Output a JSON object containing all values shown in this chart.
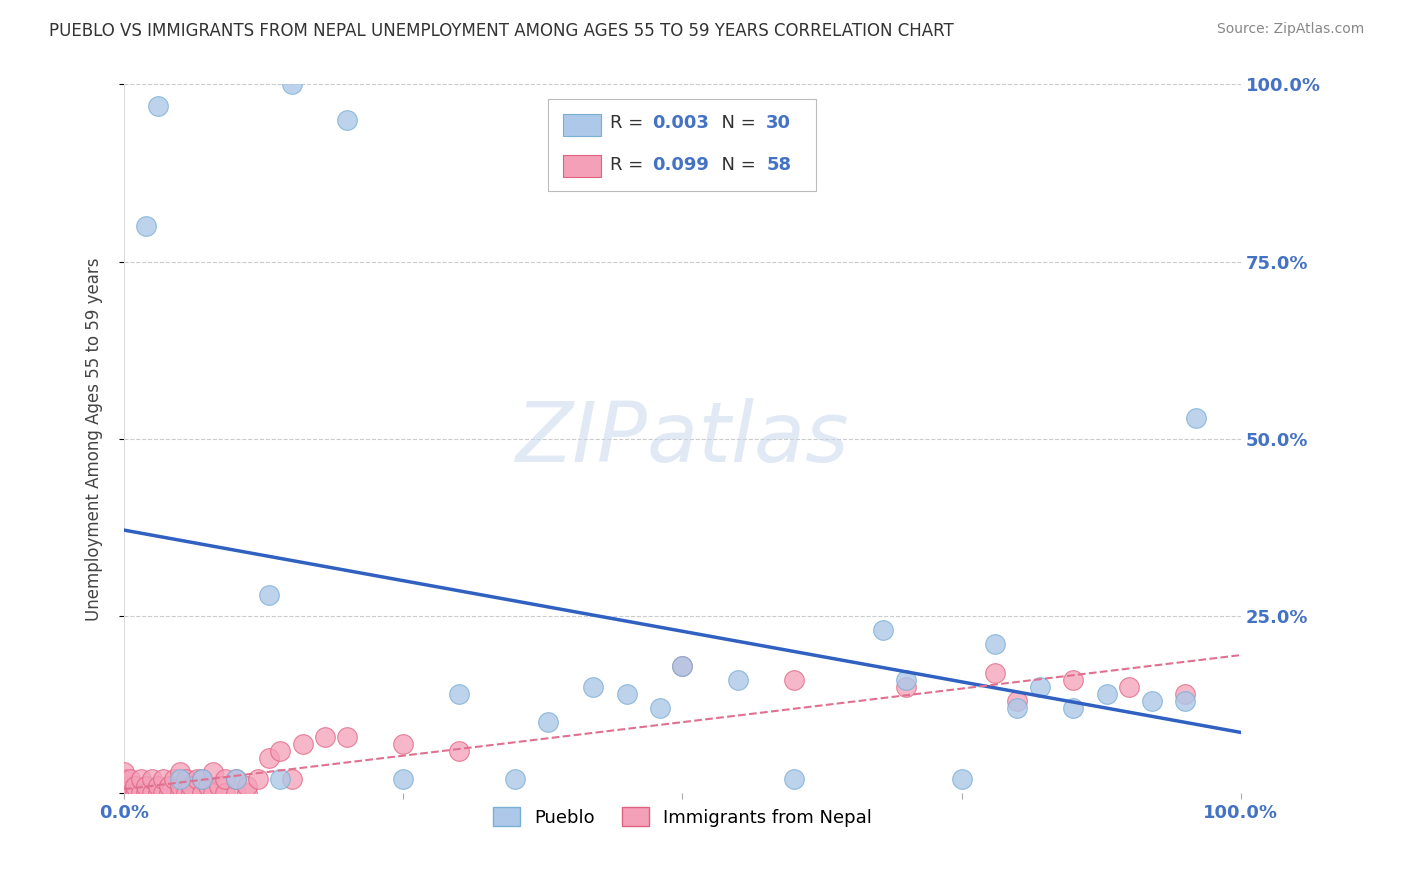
{
  "title": "PUEBLO VS IMMIGRANTS FROM NEPAL UNEMPLOYMENT AMONG AGES 55 TO 59 YEARS CORRELATION CHART",
  "source": "Source: ZipAtlas.com",
  "ylabel": "Unemployment Among Ages 55 to 59 years",
  "xlim": [
    0,
    1.0
  ],
  "ylim": [
    0,
    1.0
  ],
  "pueblo_color": "#adc8e8",
  "pueblo_edge": "#7aafd4",
  "nepal_color": "#f4a0b8",
  "nepal_edge": "#e06080",
  "pueblo_R": 0.003,
  "pueblo_N": 30,
  "nepal_R": 0.099,
  "nepal_N": 58,
  "pueblo_trend_color": "#3060c0",
  "nepal_trend_color": "#e07090",
  "watermark": "ZIPatlas",
  "pueblo_x": [
    0.02,
    0.13,
    0.15,
    0.03,
    0.2,
    0.3,
    0.35,
    0.42,
    0.45,
    0.5,
    0.55,
    0.6,
    0.68,
    0.78,
    0.82,
    0.85,
    0.88,
    0.92,
    0.95,
    0.96,
    0.1,
    0.05,
    0.07,
    0.25,
    0.38,
    0.48,
    0.7,
    0.75,
    0.8,
    0.14
  ],
  "pueblo_y": [
    0.8,
    0.28,
    1.0,
    0.97,
    0.95,
    0.14,
    0.02,
    0.15,
    0.14,
    0.18,
    0.16,
    0.02,
    0.23,
    0.21,
    0.15,
    0.12,
    0.14,
    0.13,
    0.13,
    0.53,
    0.02,
    0.02,
    0.02,
    0.02,
    0.1,
    0.12,
    0.16,
    0.02,
    0.12,
    0.02
  ],
  "nepal_x": [
    0.0,
    0.0,
    0.0,
    0.0,
    0.005,
    0.005,
    0.01,
    0.01,
    0.015,
    0.015,
    0.02,
    0.02,
    0.025,
    0.025,
    0.03,
    0.03,
    0.035,
    0.035,
    0.04,
    0.04,
    0.045,
    0.05,
    0.05,
    0.05,
    0.055,
    0.055,
    0.06,
    0.06,
    0.065,
    0.07,
    0.07,
    0.075,
    0.08,
    0.08,
    0.085,
    0.09,
    0.09,
    0.1,
    0.1,
    0.11,
    0.11,
    0.12,
    0.13,
    0.14,
    0.15,
    0.16,
    0.18,
    0.2,
    0.25,
    0.3,
    0.5,
    0.6,
    0.7,
    0.78,
    0.8,
    0.85,
    0.9,
    0.95
  ],
  "nepal_y": [
    0.0,
    0.01,
    0.02,
    0.03,
    0.0,
    0.02,
    0.0,
    0.01,
    0.0,
    0.02,
    0.0,
    0.01,
    0.0,
    0.02,
    0.0,
    0.01,
    0.0,
    0.02,
    0.0,
    0.01,
    0.02,
    0.0,
    0.01,
    0.03,
    0.0,
    0.02,
    0.0,
    0.01,
    0.02,
    0.0,
    0.02,
    0.01,
    0.0,
    0.03,
    0.01,
    0.0,
    0.02,
    0.0,
    0.02,
    0.0,
    0.01,
    0.02,
    0.05,
    0.06,
    0.02,
    0.07,
    0.08,
    0.08,
    0.07,
    0.06,
    0.18,
    0.16,
    0.15,
    0.17,
    0.13,
    0.16,
    0.15,
    0.14
  ]
}
